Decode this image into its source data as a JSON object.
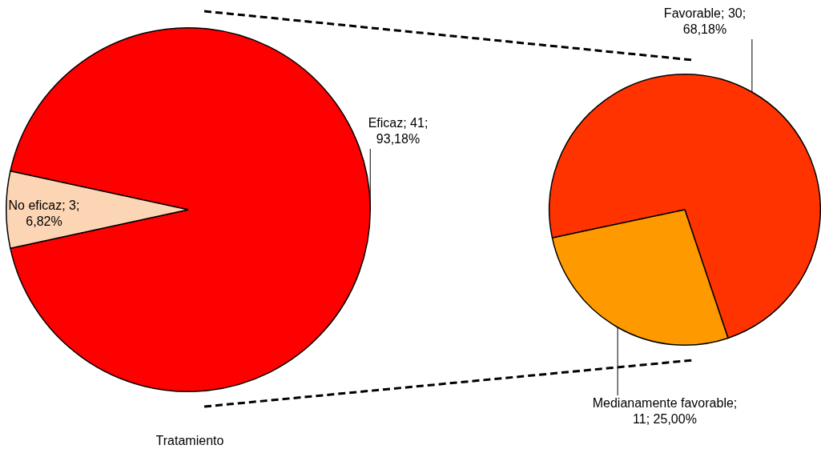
{
  "chart_data": [
    {
      "type": "pie",
      "title": "Tratamiento",
      "categories": [
        "Eficaz",
        "No eficaz"
      ],
      "values": [
        41,
        3
      ],
      "colors": [
        "#ff0000",
        "#fcd5b5"
      ],
      "value_labels": [
        "; 41; 93,18%",
        "; 3; 6,82%"
      ],
      "legend": false
    },
    {
      "type": "pie",
      "categories": [
        "Favorable",
        "Medianamente favorable"
      ],
      "values": [
        30,
        11
      ],
      "colors": [
        "#ff3300",
        "#ff9900"
      ],
      "value_labels": [
        "; 30; 68,18%",
        "; 11; 25,00%"
      ],
      "legend": false
    }
  ]
}
